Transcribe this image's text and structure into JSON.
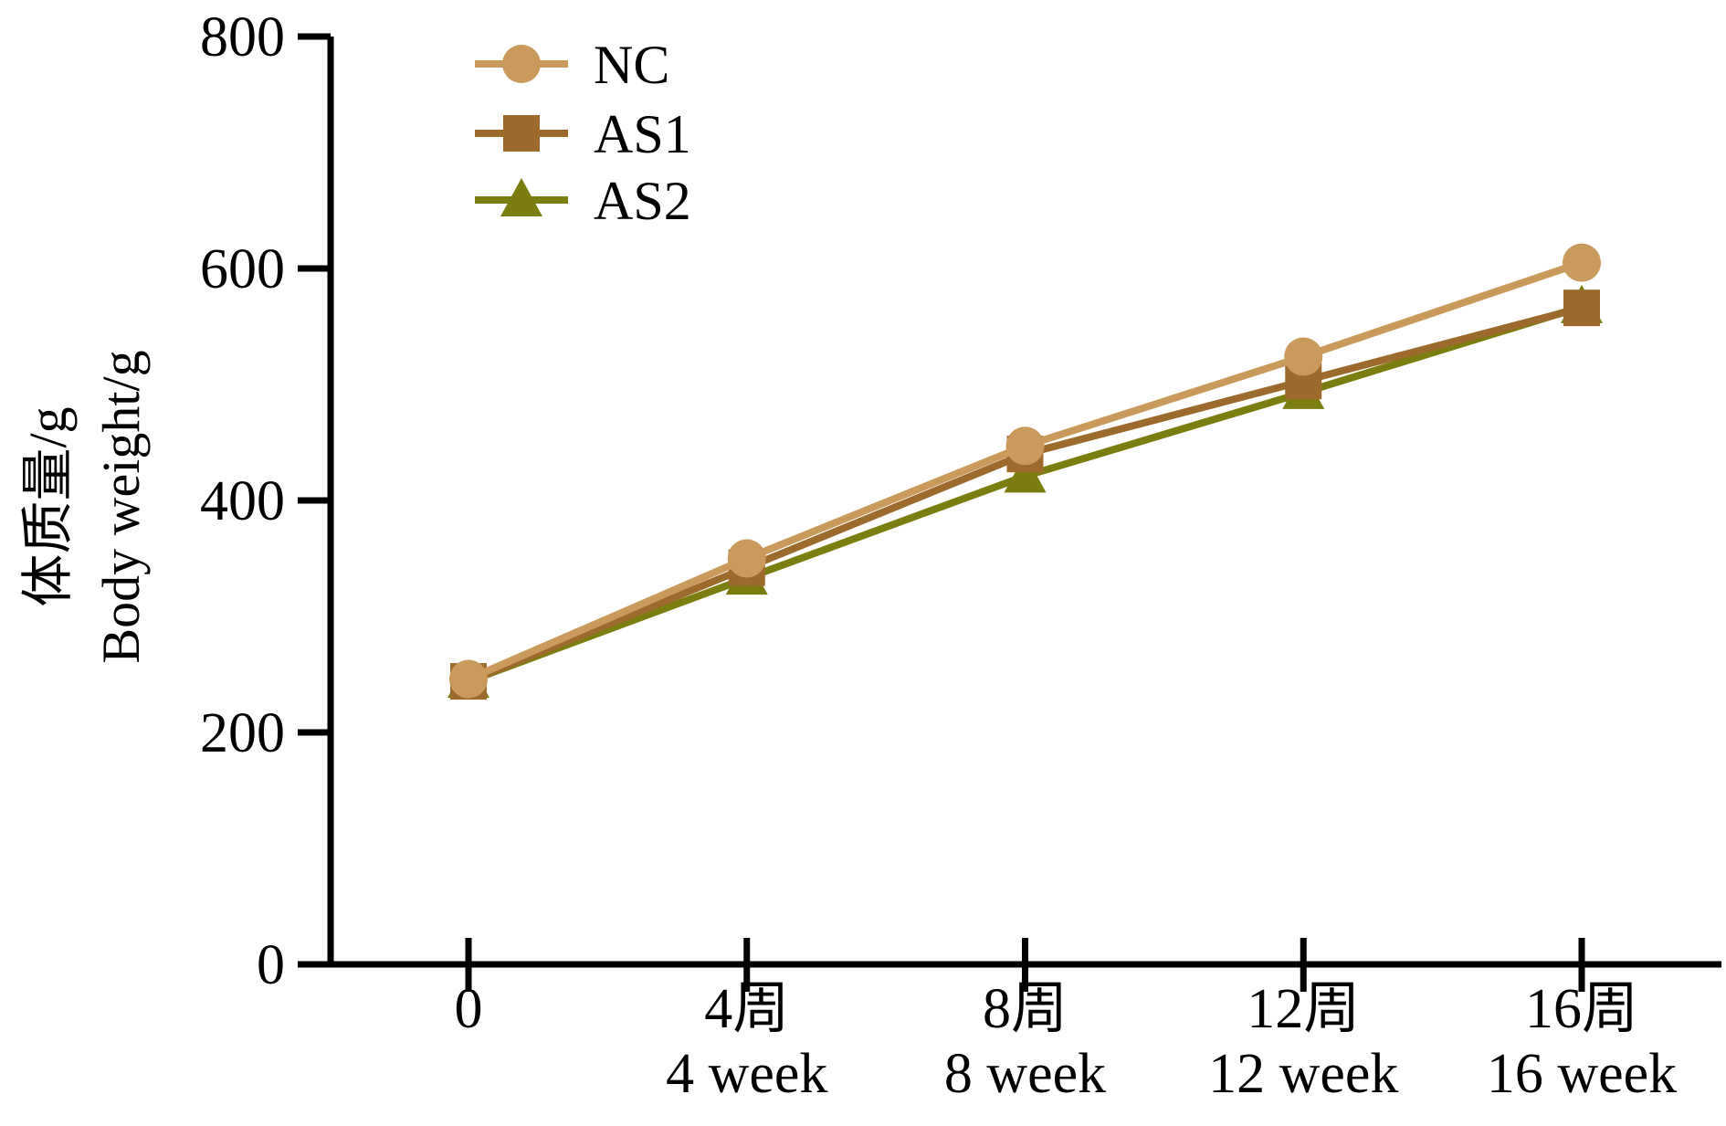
{
  "chart_data": {
    "type": "line",
    "title": "",
    "ylabel": [
      "体质量/g",
      "Body weight/g"
    ],
    "xlabel": "",
    "ylim": [
      0,
      800
    ],
    "yticks": [
      0,
      200,
      400,
      600,
      800
    ],
    "x": [
      0,
      4,
      8,
      12,
      16
    ],
    "xtick_labels": [
      [
        "0"
      ],
      [
        "4周",
        "4 week"
      ],
      [
        "8周",
        "8 week"
      ],
      [
        "12周",
        "12 week"
      ],
      [
        "16周",
        "16 week"
      ]
    ],
    "legend_position": "top-left",
    "grid": false,
    "series": [
      {
        "name": "NC",
        "marker": "circle",
        "color": "#C99A5B",
        "values": [
          246,
          350,
          447,
          524,
          605
        ]
      },
      {
        "name": "AS1",
        "marker": "square",
        "color": "#9B6A2C",
        "values": [
          244,
          342,
          440,
          503,
          566
        ]
      },
      {
        "name": "AS2",
        "marker": "triangle",
        "color": "#7B7E0F",
        "values": [
          244,
          333,
          421,
          493,
          567
        ]
      }
    ]
  }
}
